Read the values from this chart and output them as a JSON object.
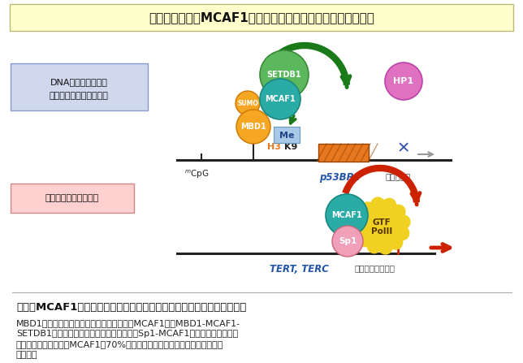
{
  "title": "癌で高発現するMCAF1によるエピジェネティックな制御異常",
  "title_bg": "#FFFFCC",
  "fig_bg": "#FFFFFF",
  "caption_title": "図３　MCAF1は異なる複合体を形成し、転写抑制又は転写活性化に働く",
  "caption_body1": "MBD1と相互作用する因子として同定されたMCAF1は、MBD1-MCAF1-",
  "caption_body2": "SETDB1複合体で転写抑制に働くが、他方、Sp1-MCAF1複合体としては転写",
  "caption_body3": "活性化に働いている。MCAF1は70%以上のヒト癌組織で高発現している（文",
  "caption_body4": "献８）。",
  "box1_label1": "DNAメチル化のある",
  "box1_label2": "転写不活性なクロマチン",
  "box1_bg": "#D0D8EE",
  "box2_label": "転写活性なクロマチン",
  "box2_bg": "#FFD0D0",
  "colors": {
    "SETDB1": "#5CB85C",
    "MCAF1_top": "#2AABA5",
    "MCAF1_bottom": "#2AABA5",
    "SUMO": "#F5A623",
    "MBD1": "#F5A623",
    "HP1": "#E070C0",
    "GTF": "#F0D020",
    "Sp1": "#F0A0B8",
    "arrow_green": "#1A7A1A",
    "arrow_red": "#CC2200",
    "gene_orange": "#E87820",
    "Me_bg": "#A8C8E8",
    "line_color": "#222222",
    "text_blue": "#2255AA",
    "text_dark": "#111111",
    "gray_arrow": "#888888",
    "x_color": "#3355AA"
  }
}
